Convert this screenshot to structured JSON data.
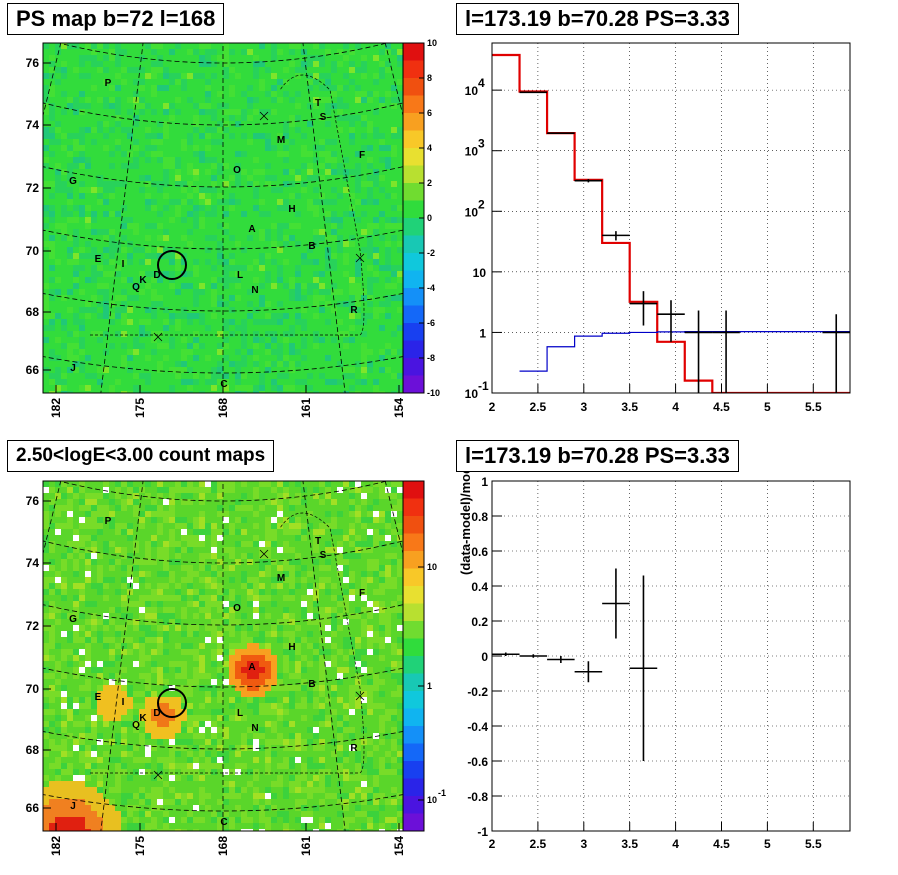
{
  "panels": {
    "tl_title": "PS map b=72 l=168",
    "tr_title": "l=173.19 b=70.28 PS=3.33",
    "bl_title": "2.50<logE<3.00 count maps",
    "br_title": "l=173.19 b=70.28 PS=3.33"
  },
  "colors": {
    "model_line": "#e00000",
    "background_line": "#0000c8",
    "data_points": "#000000",
    "map_green": "#2edc3c"
  },
  "sky_maps": {
    "y_ticks": [
      "76",
      "74",
      "72",
      "70",
      "68",
      "66"
    ],
    "x_ticks": [
      "182",
      "175",
      "168",
      "161",
      "154"
    ],
    "source_labels": [
      "P",
      "T",
      "S",
      "M",
      "F",
      "G",
      "O",
      "H",
      "A",
      "B",
      "E",
      "I",
      "D",
      "K",
      "Q",
      "L",
      "N",
      "R",
      "J",
      "C"
    ],
    "ps_colorbar_ticks": [
      "10",
      "8",
      "6",
      "4",
      "2",
      "0",
      "-2",
      "-4",
      "-6",
      "-8",
      "-10"
    ],
    "count_colorbar_ticks": [
      "10",
      "1",
      "10"
    ],
    "count_colorbar_exponent": "-1",
    "selected_source": {
      "l": 173.19,
      "b": 70.28
    }
  },
  "chart_data": [
    {
      "type": "line",
      "title": "l=173.19 b=70.28 PS=3.33",
      "xlabel": "",
      "ylabel": "",
      "x_scale": "linear",
      "y_scale": "log",
      "xlim": [
        2,
        5.9
      ],
      "ylim": [
        0.1,
        60000
      ],
      "x_ticks": [
        "2",
        "2.5",
        "3",
        "3.5",
        "4",
        "4.5",
        "5",
        "5.5"
      ],
      "y_ticks": [
        "10^-1",
        "1",
        "10",
        "10^2",
        "10^3",
        "10^4"
      ],
      "grid": true,
      "series": [
        {
          "kind": "step",
          "color": "#e00000",
          "bins": [
            [
              2.0,
              2.3,
              38000
            ],
            [
              2.3,
              2.6,
              9500
            ],
            [
              2.6,
              2.9,
              1950
            ],
            [
              2.9,
              3.2,
              330
            ],
            [
              3.2,
              3.5,
              30
            ],
            [
              3.5,
              3.8,
              3.2
            ],
            [
              3.8,
              4.1,
              0.7
            ],
            [
              4.1,
              4.4,
              0.16
            ],
            [
              4.4,
              5.9,
              0.1
            ]
          ]
        },
        {
          "kind": "step",
          "color": "#0000c8",
          "bins": [
            [
              2.3,
              2.6,
              0.23
            ],
            [
              2.6,
              2.9,
              0.58
            ],
            [
              2.9,
              3.2,
              0.87
            ],
            [
              3.2,
              3.5,
              0.97
            ],
            [
              3.5,
              3.8,
              1.0
            ],
            [
              3.8,
              4.1,
              1.02
            ],
            [
              4.1,
              4.4,
              1.03
            ],
            [
              4.4,
              5.9,
              1.03
            ]
          ]
        },
        {
          "kind": "errorbar",
          "color": "#000000",
          "points": [
            {
              "x": 2.45,
              "y": 9200,
              "xerr": 0.15,
              "lo": 9000,
              "hi": 9400
            },
            {
              "x": 2.75,
              "y": 1950,
              "xerr": 0.15,
              "lo": 1900,
              "hi": 2000
            },
            {
              "x": 3.05,
              "y": 320,
              "xerr": 0.15,
              "lo": 300,
              "hi": 340
            },
            {
              "x": 3.35,
              "y": 40,
              "xerr": 0.15,
              "lo": 33,
              "hi": 47
            },
            {
              "x": 3.65,
              "y": 3.0,
              "xerr": 0.15,
              "lo": 1.3,
              "hi": 4.8
            },
            {
              "x": 3.95,
              "y": 2.0,
              "xerr": 0.15,
              "lo": 0.7,
              "hi": 3.4
            },
            {
              "x": 4.25,
              "y": 1.0,
              "xerr": 0.15,
              "lo": 0.1,
              "hi": 2.3
            },
            {
              "x": 4.55,
              "y": 1.0,
              "xerr": 0.15,
              "lo": 0.1,
              "hi": 2.3
            },
            {
              "x": 5.75,
              "y": 1.0,
              "xerr": 0.15,
              "lo": 0.1,
              "hi": 2.0
            }
          ]
        }
      ]
    },
    {
      "type": "scatter",
      "title": "l=173.19 b=70.28 PS=3.33",
      "xlabel": "",
      "ylabel": "(data-model)/model",
      "xlim": [
        2,
        5.9
      ],
      "ylim": [
        -1,
        1
      ],
      "x_ticks": [
        "2",
        "2.5",
        "3",
        "3.5",
        "4",
        "4.5",
        "5",
        "5.5"
      ],
      "y_ticks": [
        "-1",
        "-0.8",
        "-0.6",
        "-0.4",
        "-0.2",
        "0",
        "0.2",
        "0.4",
        "0.6",
        "0.8",
        "1"
      ],
      "grid": true,
      "series": [
        {
          "kind": "errorbar",
          "color": "#000000",
          "points": [
            {
              "x": 2.15,
              "y": 0.01,
              "xerr": 0.15,
              "lo": 0.0,
              "hi": 0.02
            },
            {
              "x": 2.45,
              "y": 0.0,
              "xerr": 0.15,
              "lo": -0.01,
              "hi": 0.01
            },
            {
              "x": 2.75,
              "y": -0.02,
              "xerr": 0.15,
              "lo": -0.04,
              "hi": 0.0
            },
            {
              "x": 3.05,
              "y": -0.09,
              "xerr": 0.15,
              "lo": -0.15,
              "hi": -0.03
            },
            {
              "x": 3.35,
              "y": 0.3,
              "xerr": 0.15,
              "lo": 0.1,
              "hi": 0.5
            },
            {
              "x": 3.65,
              "y": -0.07,
              "xerr": 0.15,
              "lo": -0.6,
              "hi": 0.46
            }
          ]
        }
      ]
    }
  ]
}
